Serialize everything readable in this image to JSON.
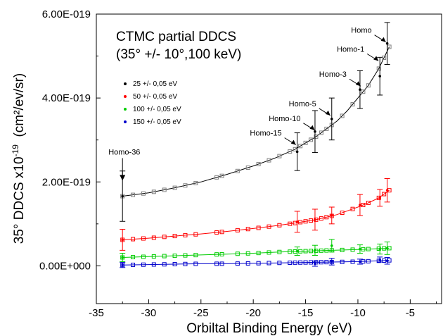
{
  "chart_data": {
    "type": "scatter",
    "title_lines": [
      "CTMC partial DDCS",
      "(35° +/- 10°,100 keV)"
    ],
    "xlabel": "Orbiltal Binding Energy (eV)",
    "ylabel_main": "35° DDCS x10",
    "ylabel_exp": "-19",
    "ylabel_units": "(cm²/ev/sr)",
    "xlim": [
      -35,
      -2
    ],
    "ylim": [
      -0.9,
      6.0
    ],
    "x_ticks": [
      -35,
      -30,
      -25,
      -20,
      -15,
      -10,
      -5
    ],
    "x_tick_labels": [
      "-35",
      "-30",
      "-25",
      "-20",
      "-15",
      "-10",
      "-5"
    ],
    "y_ticks": [
      0,
      2,
      4,
      6
    ],
    "y_tick_labels": [
      "0.00E+000",
      "2.00E-019",
      "4.00E-019",
      "6.00E-019"
    ],
    "legend": [
      {
        "label": "25  +/- 0,05 eV",
        "color": "#000000"
      },
      {
        "label": "50  +/- 0,05 eV",
        "color": "#ff0000"
      },
      {
        "label": "100 +/- 0,05 eV",
        "color": "#00cc00"
      },
      {
        "label": "150 +/- 0,05 eV",
        "color": "#0000cc"
      }
    ],
    "annotations": [
      {
        "label": "Homo",
        "x": -7.2,
        "y": 5.3
      },
      {
        "label": "Homo-1",
        "x": -7.9,
        "y": 4.85
      },
      {
        "label": "Homo-3",
        "x": -9.6,
        "y": 4.25
      },
      {
        "label": "Homo-5",
        "x": -12.5,
        "y": 3.55
      },
      {
        "label": "Homo-10",
        "x": -14.0,
        "y": 3.2
      },
      {
        "label": "Homo-15",
        "x": -15.8,
        "y": 2.85
      },
      {
        "label": "Homo-36",
        "x": -32.5,
        "y": 2.4
      }
    ],
    "series": [
      {
        "name": "25  +/- 0,05 eV",
        "color": "#000000",
        "fit_color": "#000000",
        "marker_color": "#808080",
        "curve": [
          [
            -32.5,
            1.66
          ],
          [
            -30,
            1.74
          ],
          [
            -27.5,
            1.86
          ],
          [
            -25,
            2.0
          ],
          [
            -22.5,
            2.18
          ],
          [
            -20,
            2.38
          ],
          [
            -18,
            2.56
          ],
          [
            -16,
            2.78
          ],
          [
            -14,
            3.08
          ],
          [
            -12,
            3.45
          ],
          [
            -11,
            3.7
          ],
          [
            -10,
            4.0
          ],
          [
            -9,
            4.3
          ],
          [
            -8,
            4.7
          ],
          [
            -7,
            5.22
          ]
        ],
        "markers": [
          -32.5,
          -31.5,
          -30.5,
          -29.5,
          -28.5,
          -27.5,
          -26.5,
          -25.5,
          -23.5,
          -23,
          -21.5,
          -20.5,
          -19.5,
          -18.5,
          -17.5,
          -16.5,
          -16,
          -15.5,
          -15,
          -14.5,
          -14,
          -13.5,
          -13,
          -12.5,
          -11.5,
          -10.5,
          -9.5,
          -9,
          -8,
          -7.5,
          -7
        ],
        "errors": [
          {
            "x": -32.5,
            "y": 1.66,
            "err": 0.6
          },
          {
            "x": -15.8,
            "y": 2.72,
            "err": 0.45
          },
          {
            "x": -14.1,
            "y": 3.2,
            "err": 0.5
          },
          {
            "x": -12.5,
            "y": 3.5,
            "err": 0.5
          },
          {
            "x": -9.8,
            "y": 4.2,
            "err": 0.45
          },
          {
            "x": -7.9,
            "y": 4.52,
            "err": 0.45
          },
          {
            "x": -7.2,
            "y": 5.3,
            "err": 0.5
          }
        ]
      },
      {
        "name": "50  +/- 0,05 eV",
        "color": "#ff0000",
        "fit_color": "#ff0000",
        "marker_color": "#ff0000",
        "curve": [
          [
            -32.5,
            0.62
          ],
          [
            -30,
            0.66
          ],
          [
            -27.5,
            0.71
          ],
          [
            -25,
            0.76
          ],
          [
            -22.5,
            0.82
          ],
          [
            -20,
            0.89
          ],
          [
            -18,
            0.95
          ],
          [
            -16,
            1.02
          ],
          [
            -14,
            1.1
          ],
          [
            -12,
            1.22
          ],
          [
            -10,
            1.4
          ],
          [
            -9,
            1.5
          ],
          [
            -8,
            1.62
          ],
          [
            -7,
            1.8
          ]
        ],
        "markers": [
          -32.5,
          -31.5,
          -30.5,
          -29.5,
          -28.5,
          -27.5,
          -26.5,
          -25.5,
          -23.5,
          -23,
          -21.5,
          -20.5,
          -19.5,
          -18.5,
          -17.5,
          -16.5,
          -16,
          -15.5,
          -15,
          -14.5,
          -14,
          -13.5,
          -13,
          -12.5,
          -11.5,
          -10.5,
          -9.5,
          -9,
          -8,
          -7.5,
          -7
        ],
        "errors": [
          {
            "x": -32.5,
            "y": 0.62,
            "err": 0.25
          },
          {
            "x": -15.8,
            "y": 1.05,
            "err": 0.25
          },
          {
            "x": -14.1,
            "y": 1.1,
            "err": 0.25
          },
          {
            "x": -12.5,
            "y": 1.2,
            "err": 0.2
          },
          {
            "x": -9.8,
            "y": 1.45,
            "err": 0.25
          },
          {
            "x": -7.9,
            "y": 1.62,
            "err": 0.2
          },
          {
            "x": -7.2,
            "y": 1.8,
            "err": 0.28
          }
        ]
      },
      {
        "name": "100 +/- 0,05 eV",
        "color": "#00cc00",
        "fit_color": "#00cc00",
        "marker_color": "#00cc00",
        "curve": [
          [
            -32.5,
            0.2
          ],
          [
            -30,
            0.22
          ],
          [
            -27.5,
            0.24
          ],
          [
            -25,
            0.26
          ],
          [
            -22.5,
            0.28
          ],
          [
            -20,
            0.3
          ],
          [
            -17.5,
            0.33
          ],
          [
            -15,
            0.35
          ],
          [
            -12.5,
            0.37
          ],
          [
            -10,
            0.39
          ],
          [
            -7,
            0.42
          ]
        ],
        "markers": [
          -32.5,
          -31.5,
          -30.5,
          -29.5,
          -28.5,
          -27.5,
          -26.5,
          -25.5,
          -23.5,
          -23,
          -21.5,
          -20.5,
          -19.5,
          -18.5,
          -17.5,
          -16.5,
          -16,
          -15.5,
          -15,
          -14.5,
          -14,
          -13.5,
          -13,
          -12.5,
          -11.5,
          -10.5,
          -9.5,
          -9,
          -8,
          -7.5,
          -7
        ],
        "errors": [
          {
            "x": -32.5,
            "y": 0.2,
            "err": 0.1
          },
          {
            "x": -15.8,
            "y": 0.35,
            "err": 0.1
          },
          {
            "x": -14.1,
            "y": 0.37,
            "err": 0.12
          },
          {
            "x": -12.5,
            "y": 0.48,
            "err": 0.15
          },
          {
            "x": -9.8,
            "y": 0.4,
            "err": 0.1
          },
          {
            "x": -7.9,
            "y": 0.4,
            "err": 0.12
          },
          {
            "x": -7.2,
            "y": 0.42,
            "err": 0.15
          }
        ]
      },
      {
        "name": "150 +/- 0,05 eV",
        "color": "#0000cc",
        "fit_color": "#0000cc",
        "marker_color": "#0000cc",
        "curve": [
          [
            -32.5,
            0.02
          ],
          [
            -30,
            0.03
          ],
          [
            -27.5,
            0.04
          ],
          [
            -25,
            0.05
          ],
          [
            -22.5,
            0.05
          ],
          [
            -20,
            0.06
          ],
          [
            -17.5,
            0.07
          ],
          [
            -15,
            0.08
          ],
          [
            -12.5,
            0.09
          ],
          [
            -10,
            0.1
          ],
          [
            -7,
            0.13
          ]
        ],
        "markers": [
          -32.5,
          -31.5,
          -30.5,
          -29.5,
          -28.5,
          -27.5,
          -26.5,
          -25.5,
          -23.5,
          -23,
          -21.5,
          -20.5,
          -19.5,
          -18.5,
          -17.5,
          -16.5,
          -16,
          -15.5,
          -15,
          -14.5,
          -14,
          -13.5,
          -13,
          -12.5,
          -11.5,
          -10.5,
          -9.5,
          -9,
          -8,
          -7.5,
          -7
        ],
        "errors": [
          {
            "x": -32.5,
            "y": 0.02,
            "err": 0.06
          },
          {
            "x": -14.1,
            "y": 0.05,
            "err": 0.06
          },
          {
            "x": -12.5,
            "y": 0.1,
            "err": 0.08
          },
          {
            "x": -9.8,
            "y": 0.1,
            "err": 0.06
          },
          {
            "x": -7.9,
            "y": 0.15,
            "err": 0.06
          },
          {
            "x": -7.2,
            "y": 0.12,
            "err": 0.08
          }
        ]
      }
    ]
  }
}
